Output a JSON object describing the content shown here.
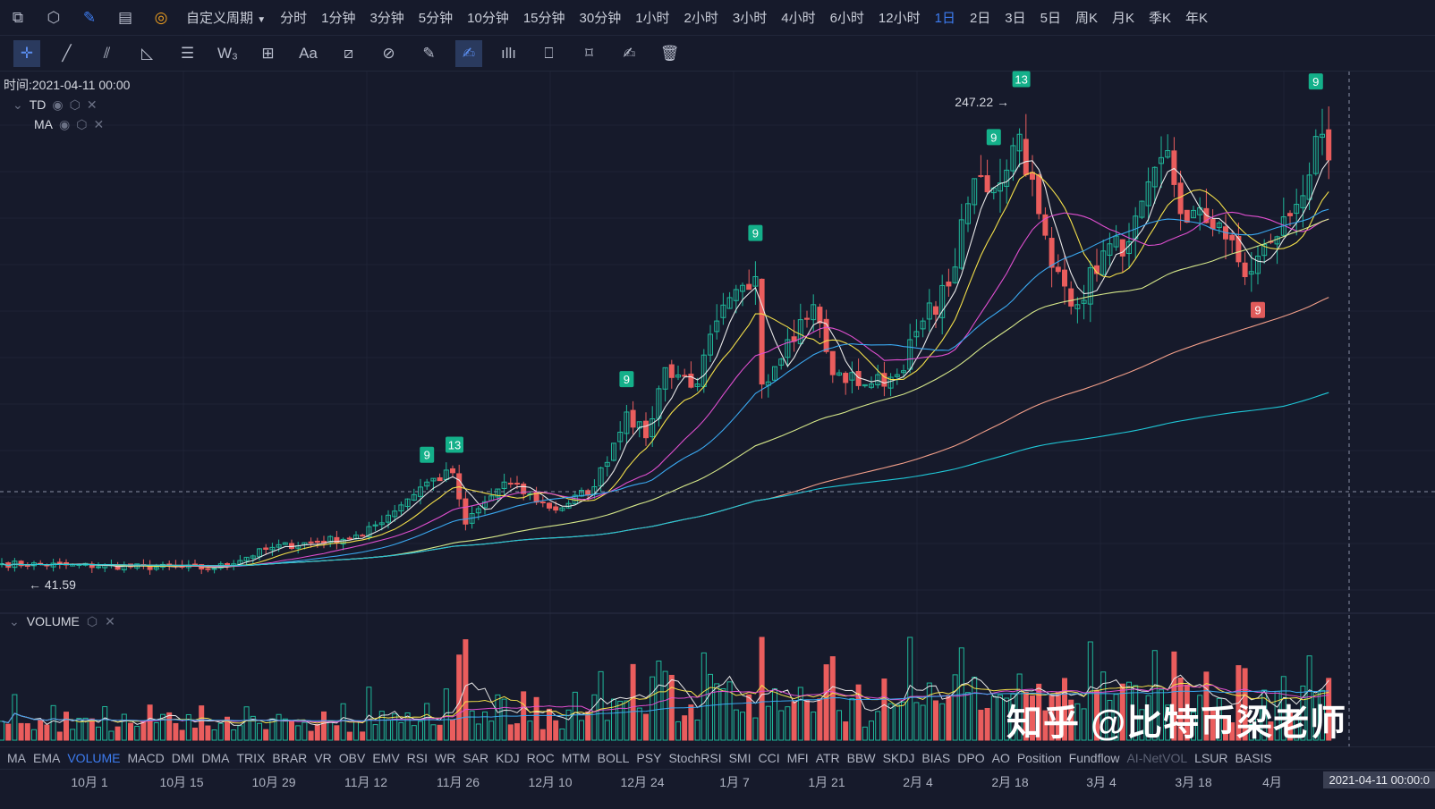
{
  "toolbar": {
    "icons": [
      "chart-icon",
      "settings-hex-icon",
      "pen-icon",
      "calendar-icon",
      "gauge-icon"
    ],
    "custom_period": "自定义周期",
    "periods": [
      "分时",
      "1分钟",
      "3分钟",
      "5分钟",
      "10分钟",
      "15分钟",
      "30分钟",
      "1小时",
      "2小时",
      "3小时",
      "4小时",
      "6小时",
      "12小时",
      "1日",
      "2日",
      "3日",
      "5日",
      "周K",
      "月K",
      "季K",
      "年K"
    ],
    "active_period": "1日"
  },
  "draw_tools": [
    {
      "name": "crosshair",
      "g": "✛"
    },
    {
      "name": "line",
      "g": "╱"
    },
    {
      "name": "parallel",
      "g": "⫽"
    },
    {
      "name": "triangle",
      "g": "◺"
    },
    {
      "name": "horizontal-lines",
      "g": "☰"
    },
    {
      "name": "wave",
      "g": "W₃"
    },
    {
      "name": "box",
      "g": "⊞"
    },
    {
      "name": "text",
      "g": "Aa"
    },
    {
      "name": "ruler",
      "g": "⧄"
    },
    {
      "name": "magnet",
      "g": "⊘"
    },
    {
      "name": "measure",
      "g": "✎"
    },
    {
      "name": "brush",
      "g": "✍"
    },
    {
      "name": "candle-compare",
      "g": "ıllı"
    },
    {
      "name": "lock",
      "g": "⎕"
    },
    {
      "name": "bookmark",
      "g": "⌑"
    },
    {
      "name": "note",
      "g": "✍"
    },
    {
      "name": "trash",
      "g": "🗑"
    }
  ],
  "legend": {
    "time": "时间:2021-04-11 00:00",
    "indicators": [
      "TD",
      "MA"
    ],
    "volume": "VOLUME"
  },
  "colors": {
    "up": "#1fb89a",
    "down": "#ea5d5d",
    "bg": "#161a2b",
    "ma": [
      "#e8e8e8",
      "#f4e04a",
      "#e04fd0",
      "#3aa8f0",
      "#d6e88a",
      "#f4a08a",
      "#1fc8d8"
    ]
  },
  "chart_data": {
    "type": "candlestick",
    "interval": "1日",
    "close_keypoints": [
      [
        "2020-09-17",
        49
      ],
      [
        "2020-10-20",
        47
      ],
      [
        "2020-10-29",
        56
      ],
      [
        "2020-11-12",
        61
      ],
      [
        "2020-11-22",
        84
      ],
      [
        "2020-11-26",
        88
      ],
      [
        "2020-11-28",
        66
      ],
      [
        "2020-12-04",
        84
      ],
      [
        "2020-12-12",
        72
      ],
      [
        "2020-12-18",
        82
      ],
      [
        "2020-12-23",
        114
      ],
      [
        "2020-12-26",
        103
      ],
      [
        "2020-12-29",
        133
      ],
      [
        "2021-01-03",
        126
      ],
      [
        "2021-01-06",
        153
      ],
      [
        "2021-01-12",
        172
      ],
      [
        "2021-01-13",
        126
      ],
      [
        "2021-01-17",
        145
      ],
      [
        "2021-01-21",
        160
      ],
      [
        "2021-01-24",
        130
      ],
      [
        "2021-01-30",
        126
      ],
      [
        "2021-02-03",
        130
      ],
      [
        "2021-02-07",
        153
      ],
      [
        "2021-02-11",
        168
      ],
      [
        "2021-02-15",
        214
      ],
      [
        "2021-02-18",
        210
      ],
      [
        "2021-02-22",
        233
      ],
      [
        "2021-02-25",
        199
      ],
      [
        "2021-02-27",
        176
      ],
      [
        "2021-03-03",
        160
      ],
      [
        "2021-03-07",
        183
      ],
      [
        "2021-03-11",
        187
      ],
      [
        "2021-03-17",
        226
      ],
      [
        "2021-03-19",
        199
      ],
      [
        "2021-03-25",
        195
      ],
      [
        "2021-03-29",
        172
      ],
      [
        "2021-04-02",
        187
      ],
      [
        "2021-04-06",
        203
      ],
      [
        "2021-04-10",
        233
      ],
      [
        "2021-04-11",
        222
      ]
    ],
    "high_label": "247.22",
    "low_label": "41.59",
    "td_marks": [
      {
        "date": "2020-11-22",
        "label": "9",
        "side": "up"
      },
      {
        "date": "2020-11-26",
        "label": "13",
        "side": "up"
      },
      {
        "date": "2020-12-23",
        "label": "9",
        "side": "up"
      },
      {
        "date": "2021-01-12",
        "label": "9",
        "side": "up"
      },
      {
        "date": "2021-02-18",
        "label": "9",
        "side": "up"
      },
      {
        "date": "2021-02-22",
        "label": "13",
        "side": "up"
      },
      {
        "date": "2021-03-31",
        "label": "9",
        "side": "down"
      },
      {
        "date": "2021-04-09",
        "label": "9",
        "side": "up"
      }
    ],
    "ma_periods": [
      5,
      10,
      20,
      30,
      60,
      120,
      200
    ],
    "x_ticks": [
      "10月 1",
      "10月 15",
      "10月 29",
      "11月 12",
      "11月 26",
      "12月 10",
      "12月 24",
      "1月 7",
      "1月 21",
      "2月 4",
      "2月 18",
      "3月 4",
      "3月 18",
      "4月"
    ],
    "cursor_label": "2021-04-11 00:00:0"
  },
  "indicators": [
    "MA",
    "EMA",
    "VOLUME",
    "MACD",
    "DMI",
    "DMA",
    "TRIX",
    "BRAR",
    "VR",
    "OBV",
    "EMV",
    "RSI",
    "WR",
    "SAR",
    "KDJ",
    "ROC",
    "MTM",
    "BOLL",
    "PSY",
    "StochRSI",
    "SMI",
    "CCI",
    "MFI",
    "ATR",
    "BBW",
    "SKDJ",
    "BIAS",
    "DPO",
    "AO",
    "Position",
    "Fundflow",
    "AI-NetVOL",
    "LSUR",
    "BASIS"
  ],
  "active_indicator": "VOLUME",
  "watermark": "知乎 @比特币梁老师"
}
